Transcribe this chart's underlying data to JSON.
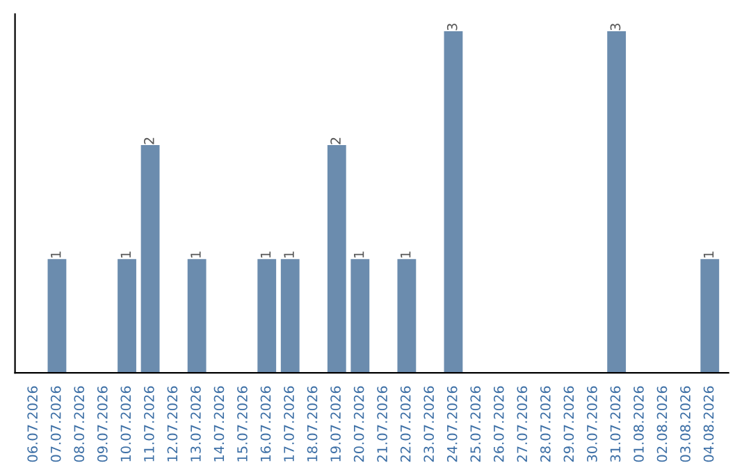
{
  "chart_data": {
    "type": "bar",
    "categories": [
      "06.07.2026",
      "07.07.2026",
      "08.07.2026",
      "09.07.2026",
      "10.07.2026",
      "11.07.2026",
      "12.07.2026",
      "13.07.2026",
      "14.07.2026",
      "15.07.2026",
      "16.07.2026",
      "17.07.2026",
      "18.07.2026",
      "19.07.2026",
      "20.07.2026",
      "21.07.2026",
      "22.07.2026",
      "23.07.2026",
      "24.07.2026",
      "25.07.2026",
      "26.07.2026",
      "27.07.2026",
      "28.07.2026",
      "29.07.2026",
      "30.07.2026",
      "31.07.2026",
      "01.08.2026",
      "02.08.2026",
      "03.08.2026",
      "04.08.2026"
    ],
    "values": [
      0,
      1,
      0,
      0,
      1,
      2,
      0,
      1,
      0,
      0,
      1,
      1,
      0,
      2,
      1,
      0,
      1,
      0,
      3,
      0,
      0,
      0,
      0,
      0,
      0,
      3,
      0,
      0,
      0,
      1
    ],
    "value_labels": [
      null,
      "1",
      null,
      null,
      "1",
      "2",
      null,
      "1",
      null,
      null,
      "1",
      "1",
      null,
      "2",
      "1",
      null,
      "1",
      null,
      "3",
      null,
      null,
      null,
      null,
      null,
      null,
      "3",
      null,
      null,
      null,
      "1"
    ],
    "color": "#6b8cae",
    "tick_labels": "x",
    "grid": false,
    "legend": false
  }
}
